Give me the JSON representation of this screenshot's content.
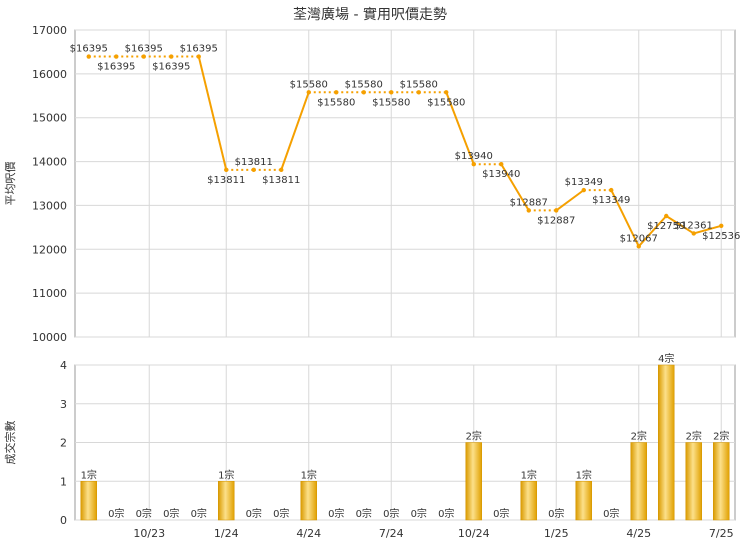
{
  "title": "荃灣廣場 - 實用呎價走勢",
  "colors": {
    "line": "#F5A000",
    "bar_light": "#FCE08A",
    "bar_mid": "#F2B92E",
    "bar_dark": "#D99A00",
    "grid": "#D8D8D8",
    "axis": "#999999"
  },
  "chart_data": [
    {
      "type": "line",
      "ylabel": "平均呎價",
      "ylim": [
        10000,
        17000
      ],
      "yticks": [
        10000,
        11000,
        12000,
        13000,
        14000,
        15000,
        16000,
        17000
      ],
      "grid": true,
      "values": [
        16395,
        16395,
        16395,
        16395,
        16395,
        13811,
        13811,
        13811,
        15580,
        15580,
        15580,
        15580,
        15580,
        15580,
        13940,
        13940,
        12887,
        12887,
        13349,
        13349,
        12067,
        12759,
        12361,
        12536
      ],
      "labels": [
        "$16395",
        "$16395",
        "$16395",
        "$16395",
        "$16395",
        "$13811",
        "$13811",
        "$13811",
        "$15580",
        "$15580",
        "$15580",
        "$15580",
        "$15580",
        "$15580",
        "$13940",
        "$13940",
        "$12887",
        "$12887",
        "$13349",
        "$13349",
        "$12067",
        "$12759",
        "$12361",
        "$12536"
      ],
      "dotted": [
        true,
        true,
        true,
        true,
        false,
        true,
        true,
        false,
        true,
        true,
        true,
        true,
        true,
        false,
        true,
        false,
        true,
        false,
        true,
        false,
        false,
        false,
        false
      ]
    },
    {
      "type": "bar",
      "ylabel": "成交宗數",
      "ylim": [
        0,
        4
      ],
      "yticks": [
        0,
        1,
        2,
        3,
        4
      ],
      "grid": true,
      "values": [
        1,
        0,
        0,
        0,
        0,
        1,
        0,
        0,
        1,
        0,
        0,
        0,
        0,
        0,
        2,
        0,
        1,
        0,
        1,
        0,
        2,
        4,
        2,
        2
      ],
      "labels": [
        "1宗",
        "0宗",
        "0宗",
        "0宗",
        "0宗",
        "1宗",
        "0宗",
        "0宗",
        "1宗",
        "0宗",
        "0宗",
        "0宗",
        "0宗",
        "0宗",
        "2宗",
        "0宗",
        "1宗",
        "0宗",
        "1宗",
        "0宗",
        "2宗",
        "4宗",
        "2宗",
        "2宗"
      ],
      "xticks": [
        {
          "index": 2.2,
          "label": "10/23"
        },
        {
          "index": 5,
          "label": "1/24"
        },
        {
          "index": 8,
          "label": "4/24"
        },
        {
          "index": 11,
          "label": "7/24"
        },
        {
          "index": 14,
          "label": "10/24"
        },
        {
          "index": 17,
          "label": "1/25"
        },
        {
          "index": 20,
          "label": "4/25"
        },
        {
          "index": 23,
          "label": "7/25"
        }
      ]
    }
  ]
}
